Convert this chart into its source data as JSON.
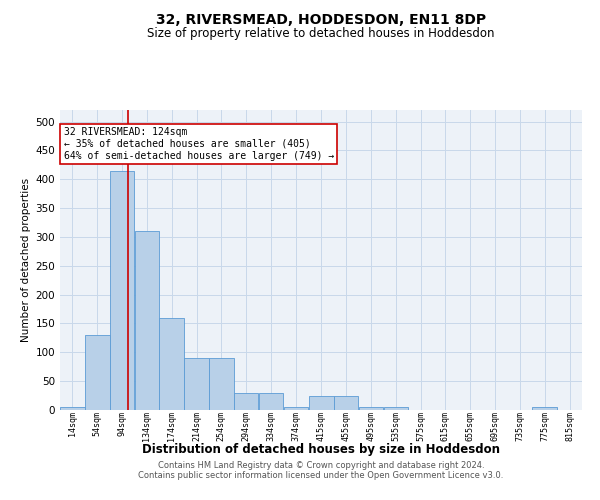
{
  "title": "32, RIVERSMEAD, HODDESDON, EN11 8DP",
  "subtitle": "Size of property relative to detached houses in Hoddesdon",
  "xlabel": "Distribution of detached houses by size in Hoddesdon",
  "ylabel": "Number of detached properties",
  "footer_line1": "Contains HM Land Registry data © Crown copyright and database right 2024.",
  "footer_line2": "Contains public sector information licensed under the Open Government Licence v3.0.",
  "bar_color": "#b8d0e8",
  "bar_edge_color": "#5b9bd5",
  "grid_color": "#c8d8ea",
  "background_color": "#edf2f8",
  "annotation_box_color": "#cc0000",
  "property_line_color": "#cc0000",
  "property_size": 124,
  "annotation_text": "32 RIVERSMEAD: 124sqm\n← 35% of detached houses are smaller (405)\n64% of semi-detached houses are larger (749) →",
  "bins": [
    "14sqm",
    "54sqm",
    "94sqm",
    "134sqm",
    "174sqm",
    "214sqm",
    "254sqm",
    "294sqm",
    "334sqm",
    "374sqm",
    "415sqm",
    "455sqm",
    "495sqm",
    "535sqm",
    "575sqm",
    "615sqm",
    "655sqm",
    "695sqm",
    "735sqm",
    "775sqm",
    "815sqm"
  ],
  "bin_edges": [
    14,
    54,
    94,
    134,
    174,
    214,
    254,
    294,
    334,
    374,
    415,
    455,
    495,
    535,
    575,
    615,
    655,
    695,
    735,
    775,
    815
  ],
  "counts": [
    5,
    130,
    415,
    310,
    160,
    90,
    90,
    30,
    30,
    5,
    25,
    25,
    5,
    5,
    0,
    0,
    0,
    0,
    0,
    5,
    0
  ],
  "ylim": [
    0,
    520
  ],
  "yticks": [
    0,
    50,
    100,
    150,
    200,
    250,
    300,
    350,
    400,
    450,
    500
  ]
}
